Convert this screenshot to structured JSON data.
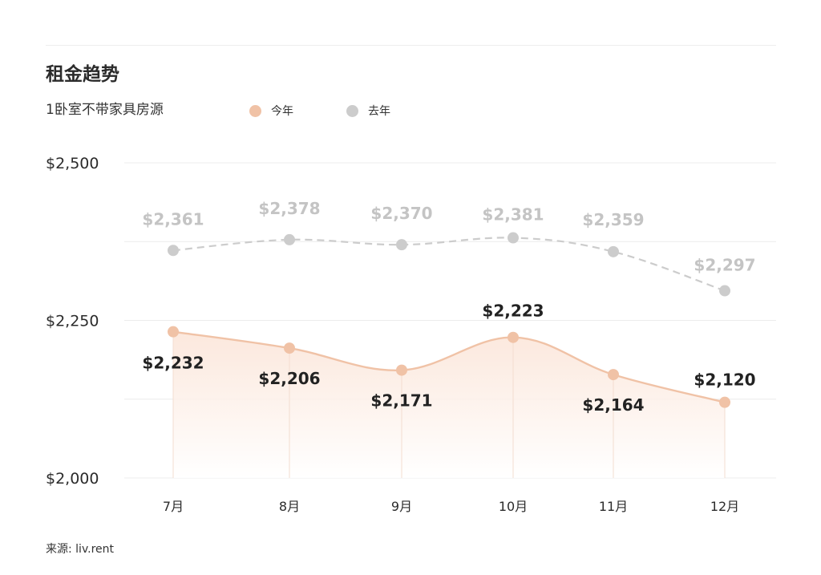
{
  "title": "租金趋势",
  "subtitle": "1卧室不带家具房源",
  "source": "来源: liv.rent",
  "colors": {
    "current": "#f0c2a6",
    "previous": "#cccccc",
    "grid": "#ececec",
    "area_top": "#fbe4d7"
  },
  "chart_data": {
    "type": "line",
    "categories": [
      "7月",
      "8月",
      "9月",
      "10月",
      "11月",
      "12月"
    ],
    "series": [
      {
        "name": "今年",
        "values": [
          2232,
          2206,
          2171,
          2223,
          2164,
          2120
        ],
        "labels": [
          "$2,232",
          "$2,206",
          "$2,171",
          "$2,223",
          "$2,164",
          "$2,120"
        ],
        "style": "solid with area fill",
        "color": "#f0c2a6"
      },
      {
        "name": "去年",
        "values": [
          2361,
          2378,
          2370,
          2381,
          2359,
          2297
        ],
        "labels": [
          "$2,361",
          "$2,378",
          "$2,370",
          "$2,381",
          "$2,359",
          "$2,297"
        ],
        "style": "dashed",
        "color": "#cccccc"
      }
    ],
    "ylim": [
      2000,
      2500
    ],
    "yticks": [
      2000,
      2250,
      2500
    ],
    "ytick_labels": [
      "$2,000",
      "$2,250",
      "$2,500"
    ],
    "grid": true,
    "legend": "top-left"
  }
}
